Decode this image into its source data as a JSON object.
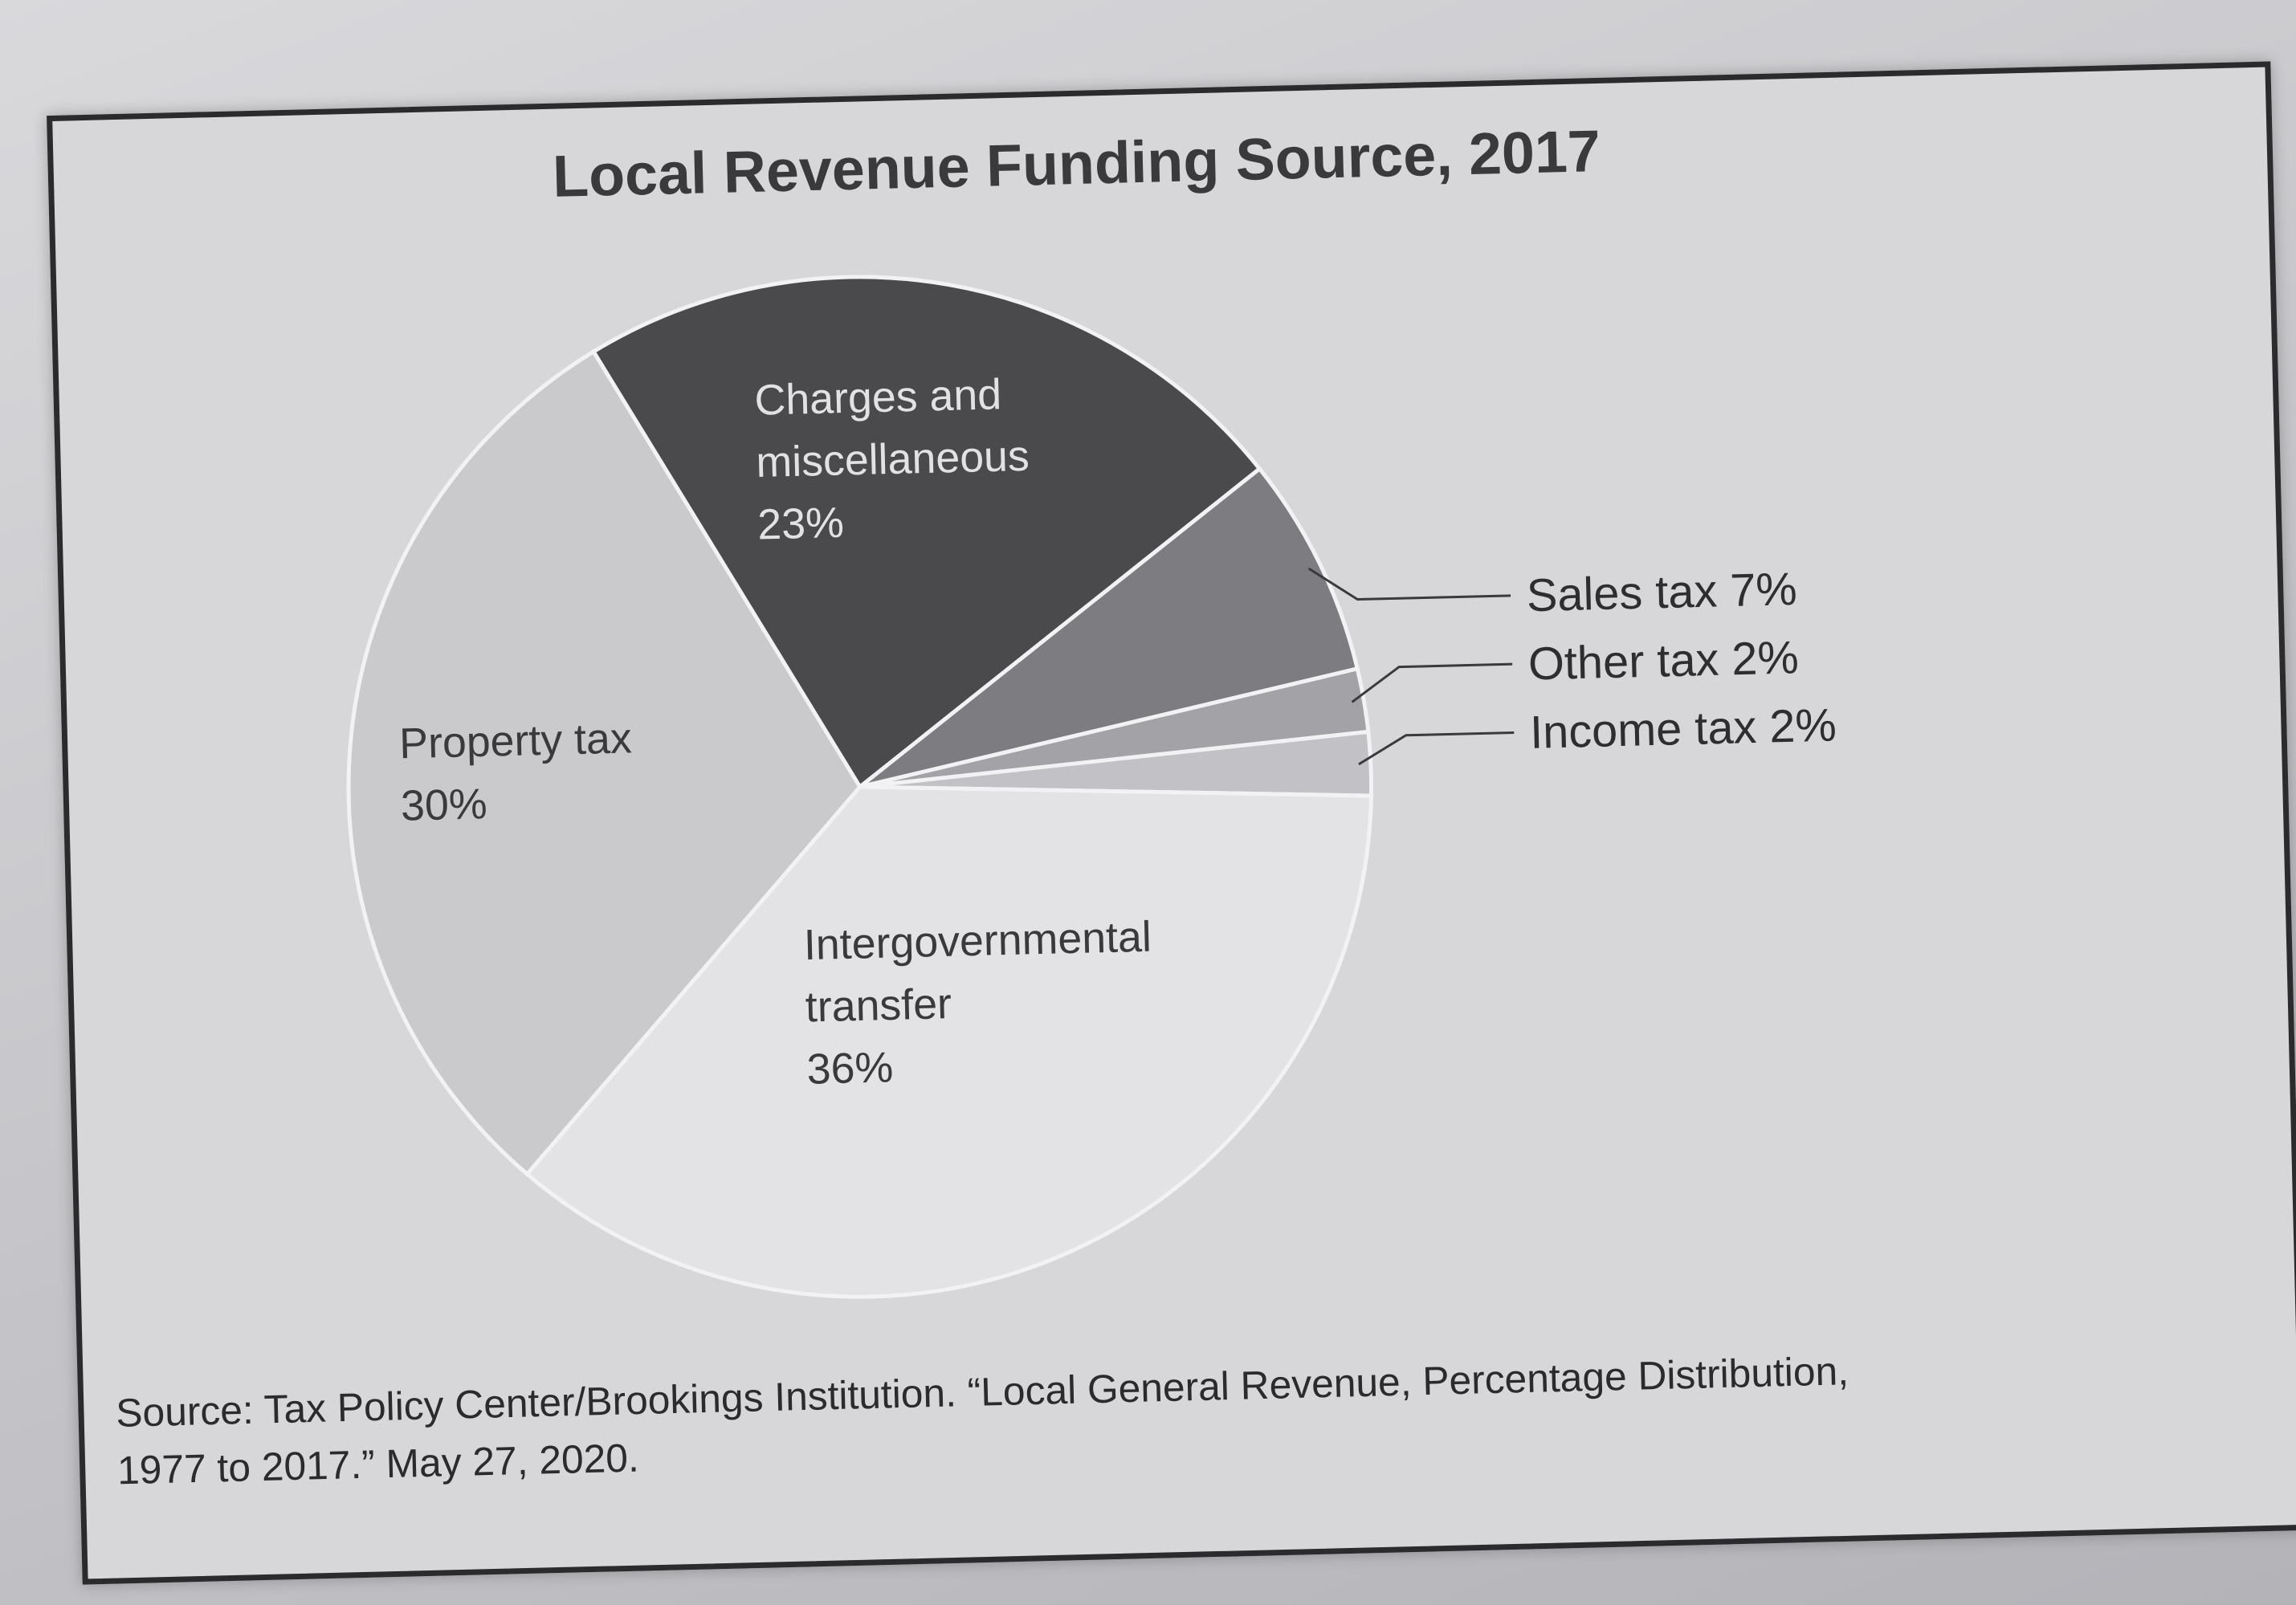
{
  "chart_data": {
    "type": "pie",
    "title": "Local Revenue Funding Source, 2017",
    "slices": [
      {
        "name": "Charges and miscellaneous",
        "label_lines": [
          "Charges and",
          "miscellaneous",
          "23%"
        ],
        "value": 23,
        "color": "#4a4a4d",
        "label_color": "#e2e2e4",
        "label_position": "inside"
      },
      {
        "name": "Sales tax",
        "label_lines": [
          "Sales tax 7%"
        ],
        "value": 7,
        "color": "#7d7d81",
        "label_color": "#2e2e31",
        "label_position": "outside"
      },
      {
        "name": "Other tax",
        "label_lines": [
          "Other tax 2%"
        ],
        "value": 2,
        "color": "#a3a3a7",
        "label_color": "#2e2e31",
        "label_position": "outside"
      },
      {
        "name": "Income tax",
        "label_lines": [
          "Income tax 2%"
        ],
        "value": 2,
        "color": "#c2c2c6",
        "label_color": "#2e2e31",
        "label_position": "outside"
      },
      {
        "name": "Intergovernmental transfer",
        "label_lines": [
          "Intergovernmental",
          "transfer",
          "36%"
        ],
        "value": 36,
        "color": "#e3e3e6",
        "label_color": "#3a3a3d",
        "label_position": "inside"
      },
      {
        "name": "Property tax",
        "label_lines": [
          "Property tax",
          "30%"
        ],
        "value": 30,
        "color": "#cacacd",
        "label_color": "#3a3a3d",
        "label_position": "inside"
      }
    ],
    "source_lines": [
      "Source: Tax Policy Center/Brookings Institution. “Local General Revenue, Percentage Distribution,",
      "1977 to 2017.” May 27, 2020."
    ]
  }
}
